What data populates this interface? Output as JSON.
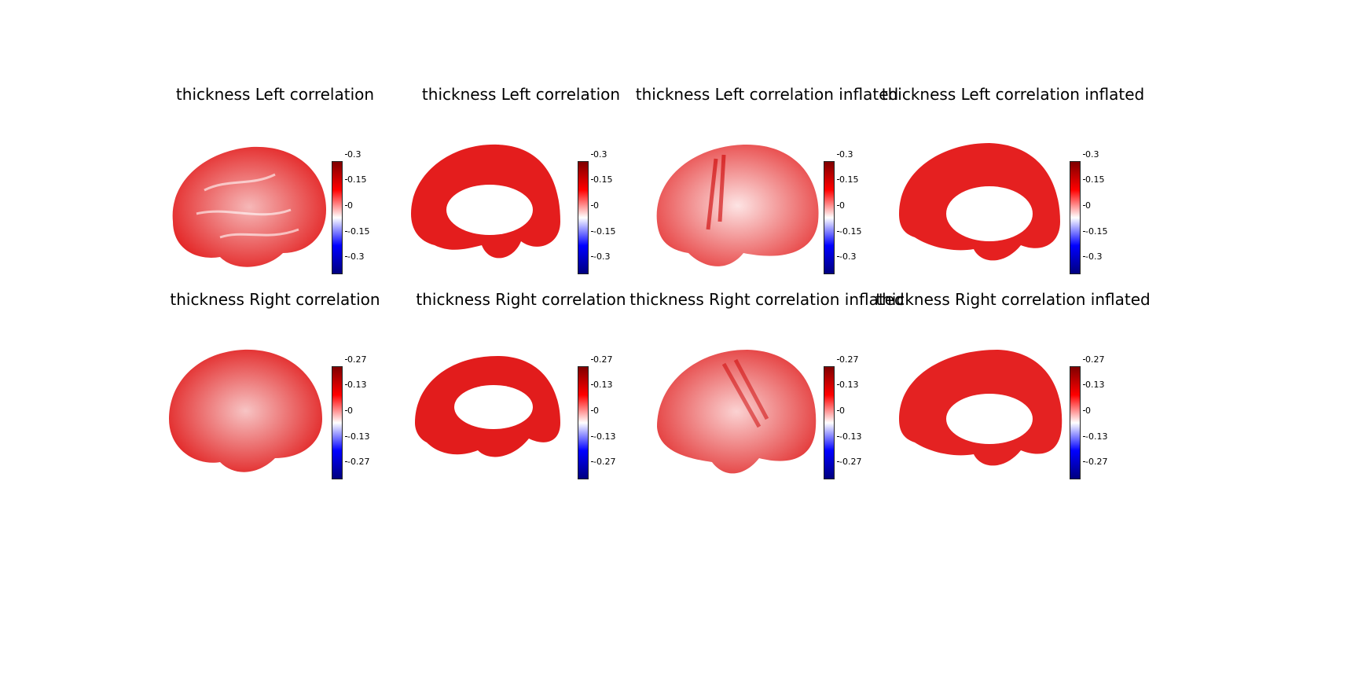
{
  "panels": [
    {
      "title": "thickness Left correlation",
      "view": "lateral-left",
      "inflated": false,
      "ticks": [
        "0.3",
        "0.15",
        "0",
        "-0.15",
        "-0.3"
      ]
    },
    {
      "title": "thickness Left correlation",
      "view": "medial-left",
      "inflated": false,
      "ticks": [
        "0.3",
        "0.15",
        "0",
        "-0.15",
        "-0.3"
      ]
    },
    {
      "title": "thickness Left correlation inflated",
      "view": "lateral-left",
      "inflated": true,
      "ticks": [
        "0.3",
        "0.15",
        "0",
        "-0.15",
        "-0.3"
      ]
    },
    {
      "title": "thickness Left correlation inflated",
      "view": "medial-left",
      "inflated": true,
      "ticks": [
        "0.3",
        "0.15",
        "0",
        "-0.15",
        "-0.3"
      ]
    },
    {
      "title": "thickness Right correlation",
      "view": "lateral-right",
      "inflated": false,
      "ticks": [
        "0.27",
        "0.13",
        "0",
        "-0.13",
        "-0.27"
      ]
    },
    {
      "title": "thickness Right correlation",
      "view": "medial-right",
      "inflated": false,
      "ticks": [
        "0.27",
        "0.13",
        "0",
        "-0.13",
        "-0.27"
      ]
    },
    {
      "title": "thickness Right correlation inflated",
      "view": "lateral-right",
      "inflated": true,
      "ticks": [
        "0.27",
        "0.13",
        "0",
        "-0.13",
        "-0.27"
      ]
    },
    {
      "title": "thickness Right correlation inflated",
      "view": "medial-right",
      "inflated": true,
      "ticks": [
        "0.27",
        "0.13",
        "0",
        "-0.13",
        "-0.27"
      ]
    }
  ],
  "colormap": {
    "top": "#7f0000",
    "mid_high": "#ff0000",
    "center": "#ffffff",
    "mid_low": "#0000ff",
    "bottom": "#00007f"
  }
}
